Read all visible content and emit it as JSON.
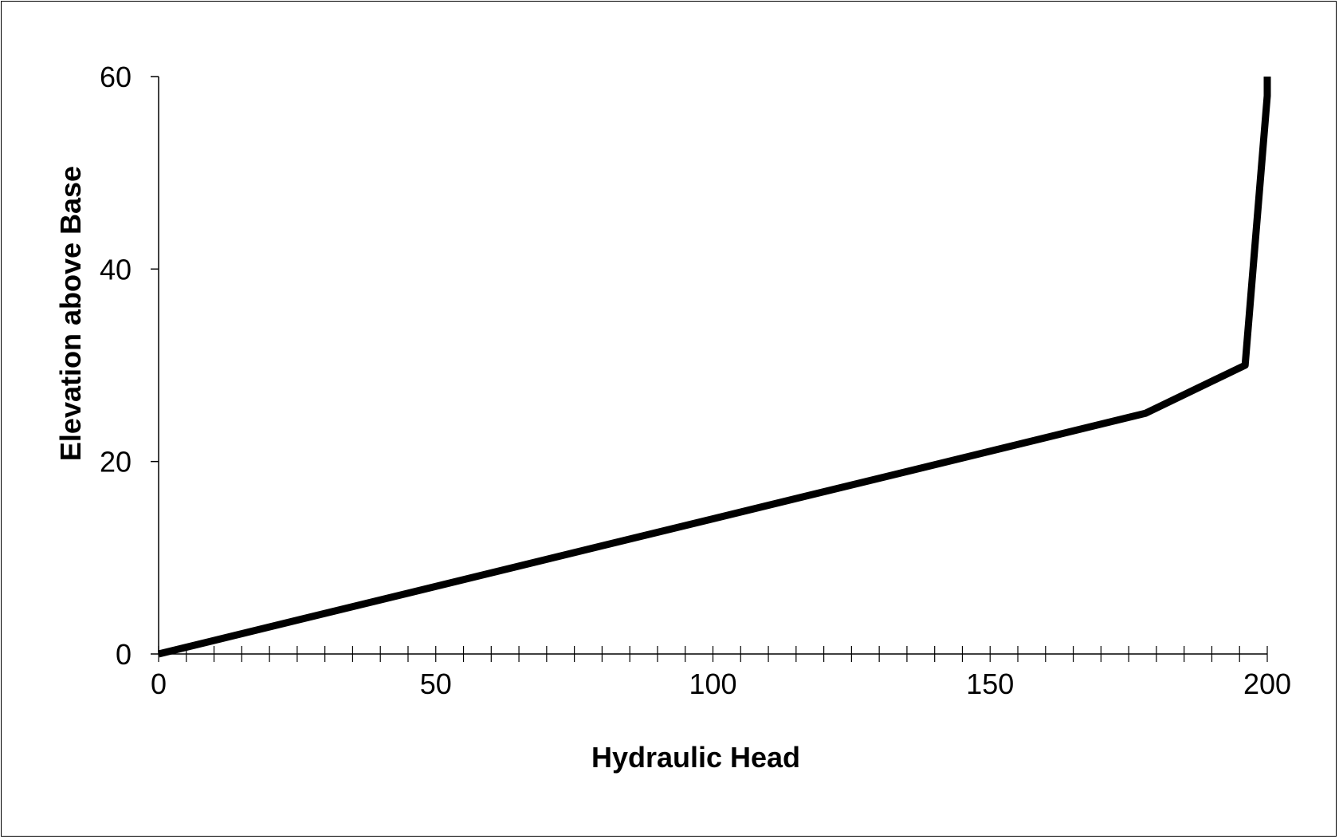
{
  "chart_data": {
    "type": "line",
    "title": "",
    "xlabel": "Hydraulic Head",
    "ylabel": "Elevation above Base",
    "xlim": [
      0,
      200
    ],
    "ylim": [
      0,
      60
    ],
    "x_ticks": [
      0,
      50,
      100,
      150,
      200
    ],
    "y_ticks": [
      0,
      20,
      40,
      60
    ],
    "x_minor_step": 5,
    "grid": false,
    "series": [
      {
        "color": "#000000",
        "x": [
          0,
          178,
          196,
          200,
          200
        ],
        "y": [
          0,
          25,
          30,
          58,
          60
        ]
      }
    ]
  }
}
